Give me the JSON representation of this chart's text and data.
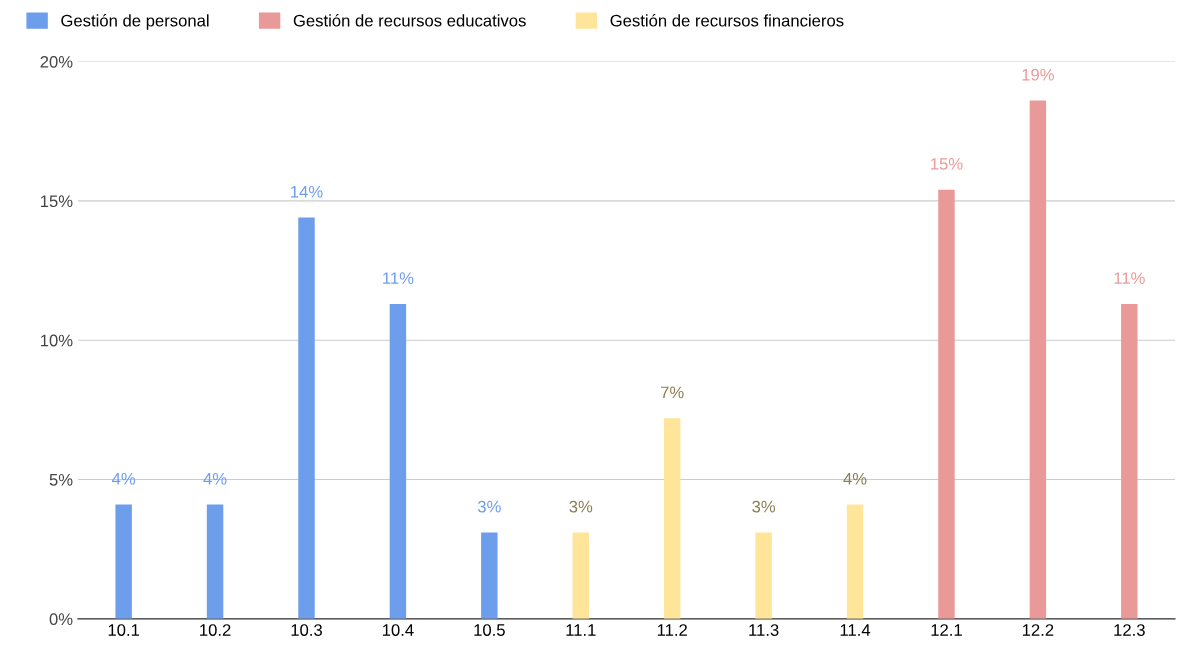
{
  "chart_data": {
    "type": "bar",
    "categories": [
      "10.1",
      "10.2",
      "10.3",
      "10.4",
      "10.5",
      "11.1",
      "11.2",
      "11.3",
      "11.4",
      "12.1",
      "12.2",
      "12.3"
    ],
    "series": [
      {
        "name": "Gestión de personal",
        "color": "#6d9eeb",
        "values": [
          4.1,
          4.1,
          14.4,
          11.3,
          3.1,
          null,
          null,
          null,
          null,
          null,
          null,
          null
        ],
        "value_labels": [
          "4%",
          "4%",
          "14%",
          "11%",
          "3%",
          null,
          null,
          null,
          null,
          null,
          null,
          null
        ]
      },
      {
        "name": "Gestión de recursos educativos",
        "color": "#ea9999",
        "values": [
          null,
          null,
          null,
          null,
          null,
          null,
          null,
          null,
          null,
          15.4,
          18.6,
          11.3
        ],
        "value_labels": [
          null,
          null,
          null,
          null,
          null,
          null,
          null,
          null,
          null,
          "15%",
          "19%",
          "11%"
        ]
      },
      {
        "name": "Gestión de recursos financieros",
        "color": "#ffe599",
        "values": [
          null,
          null,
          null,
          null,
          null,
          3.1,
          7.2,
          3.1,
          4.1,
          null,
          null,
          null
        ],
        "value_labels": [
          null,
          null,
          null,
          null,
          null,
          "3%",
          "7%",
          "3%",
          "4%",
          null,
          null,
          null
        ]
      }
    ],
    "ylim": [
      0,
      20
    ],
    "yticks": [
      {
        "value": 0,
        "label": "0%"
      },
      {
        "value": 5,
        "label": "5%"
      },
      {
        "value": 10,
        "label": "10%"
      },
      {
        "value": 15,
        "label": "15%"
      },
      {
        "value": 20,
        "label": "20%"
      }
    ],
    "grid": "y",
    "legend": "top left"
  }
}
